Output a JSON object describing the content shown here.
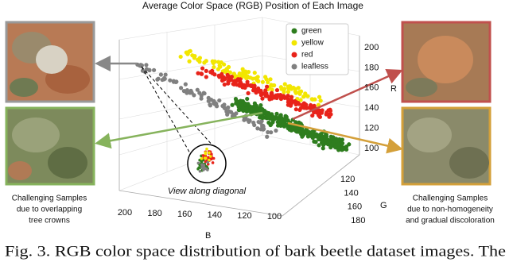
{
  "figure": {
    "title": "Average Color Space (RGB) Position of Each Image",
    "legend": [
      {
        "label": "green",
        "color": "#2e7d1e"
      },
      {
        "label": "yellow",
        "color": "#f2e600"
      },
      {
        "label": "red",
        "color": "#e8231a"
      },
      {
        "label": "leafless",
        "color": "#808080"
      }
    ],
    "axes": {
      "r_label": "R",
      "g_label": "G",
      "b_label": "B",
      "r_ticks": [
        100,
        120,
        140,
        160,
        180,
        200
      ],
      "g_ticks": [
        120,
        140,
        160,
        180
      ],
      "b_ticks": [
        200,
        180,
        160,
        140,
        120,
        100
      ]
    },
    "inset_label": "View along diagonal",
    "left_caption": [
      "Challenging Samples",
      "due to overlapping",
      "tree crowns"
    ],
    "right_caption": [
      "Challenging Samples",
      "due to non-homogeneity",
      "and gradual discoloration"
    ]
  },
  "caption": "Fig. 3.   RGB color space distribution of bark beetle dataset images. The"
}
